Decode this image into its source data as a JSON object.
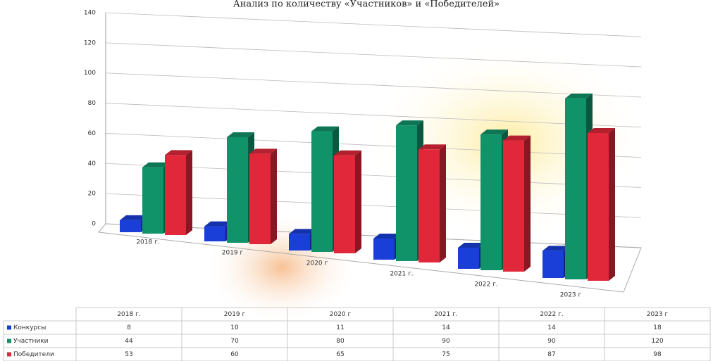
{
  "chart_data": {
    "type": "bar3d",
    "title": "Анализ по количеству «Участников» и «Победителей»",
    "categories": [
      "2018 г.",
      "2019 г",
      "2020 г",
      "2021 г.",
      "2022 г.",
      "2023 г"
    ],
    "series": [
      {
        "name": "Конкурсы",
        "color": "#1a3fd8",
        "values": [
          8,
          10,
          11,
          14,
          14,
          18
        ]
      },
      {
        "name": "Участники",
        "color": "#11936a",
        "values": [
          44,
          70,
          80,
          90,
          90,
          120
        ]
      },
      {
        "name": "Победители",
        "color": "#e0283a",
        "values": [
          53,
          60,
          65,
          75,
          87,
          98
        ]
      }
    ],
    "ylim": [
      0,
      140
    ],
    "yticks": [
      0,
      20,
      40,
      60,
      80,
      100,
      120,
      140
    ],
    "grid": true
  }
}
